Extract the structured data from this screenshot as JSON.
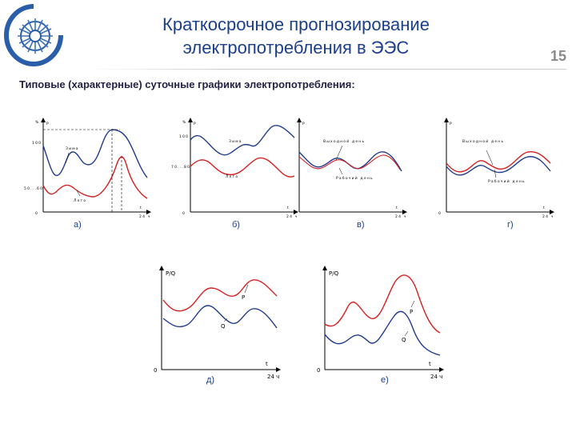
{
  "header": {
    "title_line1": "Краткосрочное прогнозирование",
    "title_line2": "электропотребления в ЭЭС",
    "page_number": "15",
    "logo_icon": "sun-gear-logo-icon"
  },
  "subtitle": "Типовые (характерные) суточные графики электропотребления:",
  "colors": {
    "title": "#1b3f8b",
    "winter": "#1f3b8c",
    "summer": "#d42020",
    "label": "#1b3f8b"
  },
  "panels": [
    {
      "id": "a",
      "label": "а)",
      "y_unit": "%",
      "y_axis": "P",
      "y_top": "100",
      "y_mid": "50...60",
      "origin": "0",
      "t": "t",
      "t_end": "24 ч",
      "curve_upper": "Зима",
      "curve_lower": "Лето"
    },
    {
      "id": "b",
      "label": "б)",
      "y_unit": "%",
      "y_axis": "P",
      "y_top": "100",
      "y_mid": "70...80",
      "origin": "0",
      "t": "t",
      "t_end": "24 ч",
      "curve_upper": "Зима",
      "curve_lower": "Лето"
    },
    {
      "id": "v",
      "label": "в)",
      "y_axis": "P",
      "t": "t",
      "t_end": "24 ч",
      "curve_upper": "Выходной день",
      "curve_lower": "Рабочий день"
    },
    {
      "id": "g",
      "label": "г)",
      "y_axis": "P",
      "origin": "0",
      "t": "t",
      "t_end": "24 ч",
      "curve_upper": "Выходной день",
      "curve_lower": "Рабочий день"
    },
    {
      "id": "d",
      "label": "д)",
      "y_axis": "P/Q",
      "origin": "0",
      "t": "t",
      "t_end": "24 ч",
      "curve_p": "P",
      "curve_q": "Q"
    },
    {
      "id": "e",
      "label": "е)",
      "y_axis": "P/Q",
      "origin": "0",
      "t": "t",
      "t_end": "24 ч",
      "curve_p": "P",
      "curve_q": "Q"
    }
  ]
}
